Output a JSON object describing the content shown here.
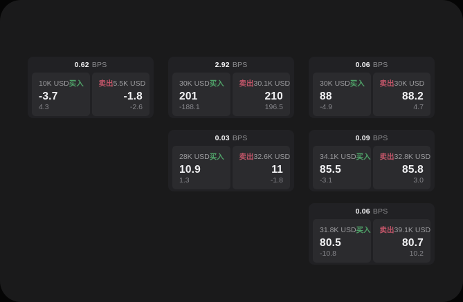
{
  "labels": {
    "bps_unit": "BPS",
    "buy": "买入",
    "sell": "卖出"
  },
  "colors": {
    "buy_green": "#4fa168",
    "sell_red": "#c05568",
    "panel_bg": "#1a1a1b",
    "card_bg": "#212124",
    "tile_bg": "#2b2b2e"
  },
  "cards": [
    {
      "bps": "0.62",
      "buy": {
        "size": "10K USD",
        "price": "-3.7",
        "delta": "4.3"
      },
      "sell": {
        "size": "5.5K USD",
        "price": "-1.8",
        "delta": "-2.6"
      }
    },
    {
      "bps": "2.92",
      "buy": {
        "size": "30K USD",
        "price": "201",
        "delta": "-188.1"
      },
      "sell": {
        "size": "30.1K USD",
        "price": "210",
        "delta": "196.5"
      }
    },
    {
      "bps": "0.06",
      "buy": {
        "size": "30K USD",
        "price": "88",
        "delta": "-4.9"
      },
      "sell": {
        "size": "30K USD",
        "price": "88.2",
        "delta": "4.7"
      }
    },
    {
      "bps": "0.03",
      "buy": {
        "size": "28K USD",
        "price": "10.9",
        "delta": "1.3"
      },
      "sell": {
        "size": "32.6K USD",
        "price": "11",
        "delta": "-1.8"
      }
    },
    {
      "bps": "0.09",
      "buy": {
        "size": "34.1K USD",
        "price": "85.5",
        "delta": "-3.1"
      },
      "sell": {
        "size": "32.8K USD",
        "price": "85.8",
        "delta": "3.0"
      }
    },
    {
      "bps": "0.06",
      "buy": {
        "size": "31.8K USD",
        "price": "80.5",
        "delta": "-10.8"
      },
      "sell": {
        "size": "39.1K USD",
        "price": "80.7",
        "delta": "10.2"
      }
    }
  ]
}
